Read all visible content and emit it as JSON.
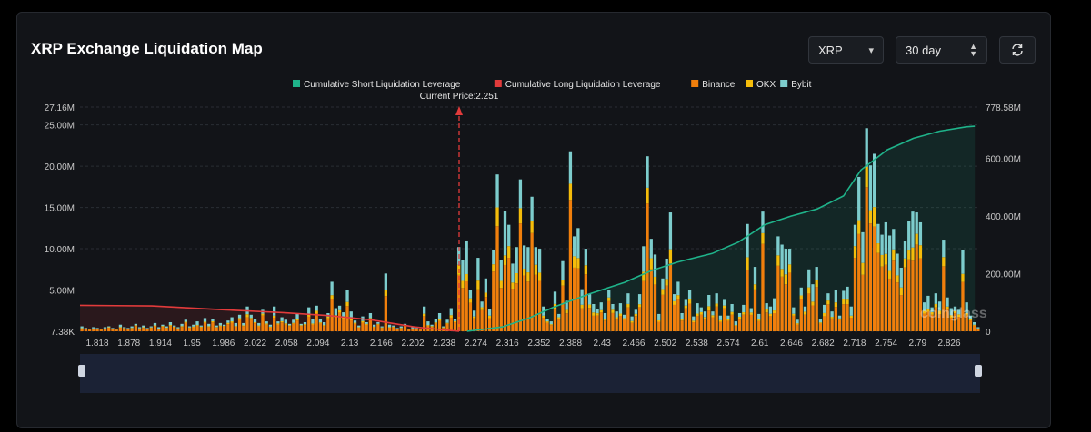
{
  "title": "XRP Exchange Liquidation Map",
  "controls": {
    "coin": "XRP",
    "period": "30 day",
    "refresh_icon": "refresh-icon"
  },
  "watermark": "coinglass",
  "colors": {
    "short": "#1fb38a",
    "long": "#e23b3b",
    "binance": "#f07f0c",
    "okx": "#f5bd0b",
    "bybit": "#7dcdcd"
  },
  "chart_data": {
    "type": "bar",
    "current_price_label": "Current Price:2.251",
    "current_price": 2.251,
    "x_ticks": [
      "1.818",
      "1.878",
      "1.914",
      "1.95",
      "1.986",
      "2.022",
      "2.058",
      "2.094",
      "2.13",
      "2.166",
      "2.202",
      "2.238",
      "2.274",
      "2.316",
      "2.352",
      "2.388",
      "2.43",
      "2.466",
      "2.502",
      "2.538",
      "2.574",
      "2.61",
      "2.646",
      "2.682",
      "2.718",
      "2.754",
      "2.79",
      "2.826"
    ],
    "y_left_ticks": [
      "7.38K",
      "5.00M",
      "10.00M",
      "15.00M",
      "20.00M",
      "25.00M",
      "27.16M"
    ],
    "y_left_range": [
      0,
      27.16
    ],
    "y_right_ticks": [
      "0",
      "200.00M",
      "400.00M",
      "600.00M",
      "778.58M"
    ],
    "y_right_range": [
      0,
      778.58
    ],
    "legend": [
      {
        "name": "Cumulative Short Liquidation Leverage",
        "color": "#1fb38a"
      },
      {
        "name": "Cumulative Long Liquidation Leverage",
        "color": "#e23b3b"
      },
      {
        "name": "Binance",
        "color": "#f07f0c"
      },
      {
        "name": "OKX",
        "color": "#f5bd0b"
      },
      {
        "name": "Bybit",
        "color": "#7dcdcd"
      }
    ],
    "bars_total_millions": [
      0.6,
      0.4,
      0.3,
      0.5,
      0.4,
      0.3,
      0.5,
      0.6,
      0.4,
      0.3,
      0.8,
      0.5,
      0.4,
      0.6,
      0.9,
      0.5,
      0.7,
      0.4,
      0.6,
      1.0,
      0.5,
      0.8,
      0.6,
      1.1,
      0.7,
      0.5,
      0.9,
      1.4,
      0.6,
      0.8,
      1.2,
      0.7,
      1.6,
      0.9,
      1.5,
      0.7,
      1.0,
      0.8,
      1.3,
      1.7,
      1.0,
      2.0,
      1.0,
      3.0,
      2.0,
      1.5,
      1.0,
      2.6,
      1.2,
      0.8,
      3.0,
      1.2,
      1.7,
      1.4,
      0.9,
      1.4,
      2.2,
      0.9,
      1.1,
      2.9,
      1.5,
      3.1,
      1.5,
      1.1,
      2.2,
      6.0,
      2.8,
      3.1,
      2.3,
      5.0,
      2.4,
      1.3,
      0.7,
      1.8,
      1.1,
      2.2,
      0.8,
      1.1,
      0.6,
      7.0,
      0.8,
      0.7,
      0.4,
      0.6,
      0.9,
      0.3,
      0.5,
      0.4,
      0.3,
      3.0,
      1.2,
      0.8,
      1.5,
      2.2,
      0.6,
      1.4,
      2.8,
      1.5,
      10.2,
      8.6,
      11.0,
      5.0,
      2.5,
      8.9,
      3.6,
      6.4,
      2.7,
      9.9,
      19.0,
      8.6,
      14.6,
      12.9,
      8.2,
      10.2,
      18.4,
      10.4,
      10.2,
      16.3,
      10.2,
      10.0,
      3.0,
      1.5,
      1.2,
      4.8,
      2.1,
      8.5,
      3.7,
      21.8,
      11.5,
      12.5,
      5.1,
      10.0,
      4.5,
      3.3,
      2.7,
      3.5,
      2.2,
      5.0,
      3.3,
      2.4,
      3.4,
      2.0,
      4.6,
      1.8,
      2.6,
      4.5,
      10.3,
      21.2,
      11.2,
      9.3,
      2.1,
      6.4,
      8.8,
      14.4,
      4.5,
      6.0,
      2.2,
      3.8,
      5.0,
      1.8,
      3.4,
      2.9,
      2.4,
      4.4,
      2.4,
      4.6,
      1.9,
      3.8,
      1.9,
      3.3,
      1.2,
      2.2,
      3.2,
      13.0,
      2.8,
      7.8,
      2.1,
      14.5,
      3.4,
      3.0,
      4.0,
      11.5,
      10.5,
      10.0,
      10.0,
      2.9,
      1.4,
      5.3,
      3.0,
      7.5,
      5.7,
      7.8,
      1.5,
      3.2,
      4.6,
      2.4,
      5.0,
      1.9,
      4.9,
      5.4,
      3.0,
      12.9,
      18.7,
      12.0,
      24.6,
      20.1,
      21.5,
      13.0,
      11.7,
      13.2,
      11.6,
      12.4,
      9.4,
      7.7,
      10.9,
      13.4,
      14.5,
      14.4,
      13.2,
      3.5,
      4.3,
      2.9,
      4.6,
      3.6,
      11.1,
      4.1,
      2.8,
      3.0,
      2.6,
      9.8,
      3.5,
      1.9,
      1.1,
      0.5
    ],
    "cumulative_short_points": [
      [
        2.26,
        0
      ],
      [
        2.3,
        15
      ],
      [
        2.33,
        45
      ],
      [
        2.36,
        85
      ],
      [
        2.4,
        130
      ],
      [
        2.44,
        170
      ],
      [
        2.47,
        210
      ],
      [
        2.5,
        240
      ],
      [
        2.54,
        270
      ],
      [
        2.57,
        310
      ],
      [
        2.6,
        370
      ],
      [
        2.63,
        400
      ],
      [
        2.66,
        425
      ],
      [
        2.69,
        470
      ],
      [
        2.71,
        560
      ],
      [
        2.74,
        630
      ],
      [
        2.77,
        670
      ],
      [
        2.8,
        695
      ],
      [
        2.83,
        710
      ],
      [
        2.84,
        712
      ]
    ],
    "cumulative_long_points": [
      [
        1.818,
        90
      ],
      [
        1.9,
        88
      ],
      [
        1.98,
        75
      ],
      [
        2.05,
        65
      ],
      [
        2.1,
        55
      ],
      [
        2.15,
        40
      ],
      [
        2.2,
        15
      ],
      [
        2.251,
        0
      ]
    ]
  }
}
